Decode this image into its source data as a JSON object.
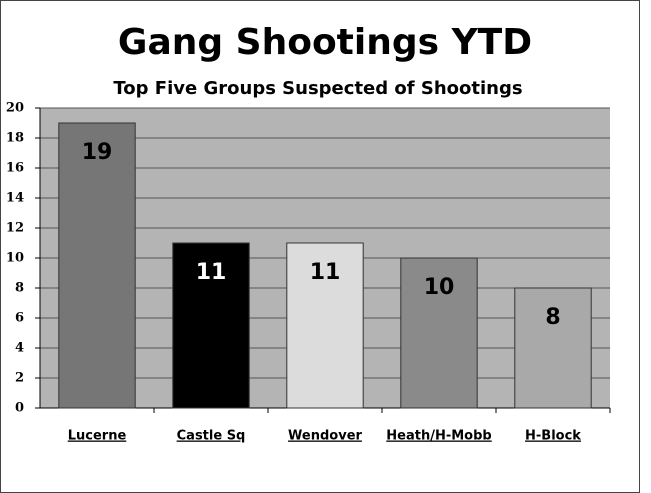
{
  "chart_data": {
    "type": "bar",
    "title": "Gang Shootings YTD",
    "subtitle": "Top Five Groups Suspected of Shootings",
    "categories": [
      "Lucerne",
      "Castle  Sq",
      "Wendover",
      "Heath/H-Mobb",
      "H-Block"
    ],
    "values": [
      19,
      11,
      11,
      10,
      8
    ],
    "colors": [
      "#767676",
      "#000000",
      "#dcdcdc",
      "#8a8a8a",
      "#a9a9a9"
    ],
    "ylim": [
      0,
      20
    ],
    "yticks": [
      0,
      2,
      4,
      6,
      8,
      10,
      12,
      14,
      16,
      18,
      20
    ],
    "grid": true
  }
}
